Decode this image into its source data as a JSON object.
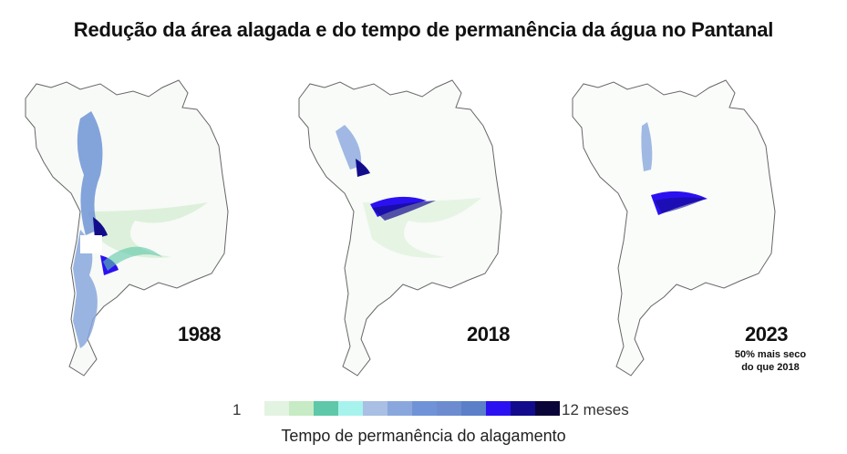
{
  "title": "Redução da área alagada e do tempo de permanência da água no Pantanal",
  "maps": [
    {
      "year": "1988",
      "note": "",
      "icon": "pantanal-map-1988"
    },
    {
      "year": "2018",
      "note": "",
      "icon": "pantanal-map-2018"
    },
    {
      "year": "2023",
      "note_line1": "50% mais seco",
      "note_line2": "do que 2018",
      "icon": "pantanal-map-2023"
    }
  ],
  "legend": {
    "min_label": "1",
    "max_label": "12",
    "unit": "meses",
    "caption": "Tempo de permanência do alagamento",
    "colors": [
      "#e3f3e1",
      "#c7ebc4",
      "#5ec8a8",
      "#a6f3ee",
      "#a9bfe3",
      "#8aa7dd",
      "#6f93d6",
      "#6c8ccf",
      "#5b7fc8",
      "#2b11f1",
      "#120c8d",
      "#0a0538"
    ]
  }
}
